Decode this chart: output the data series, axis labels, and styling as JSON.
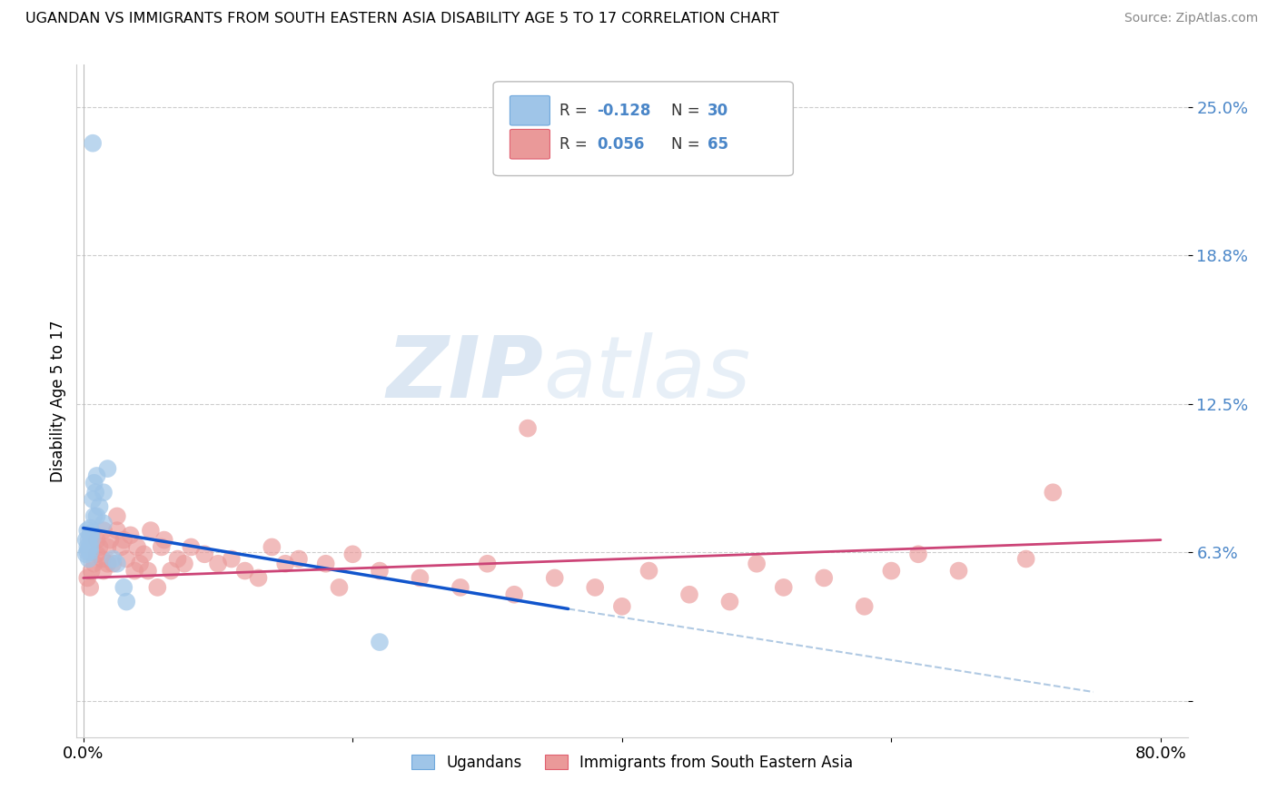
{
  "title": "UGANDAN VS IMMIGRANTS FROM SOUTH EASTERN ASIA DISABILITY AGE 5 TO 17 CORRELATION CHART",
  "source": "Source: ZipAtlas.com",
  "ylabel": "Disability Age 5 to 17",
  "ytick_vals": [
    0.0,
    0.063,
    0.125,
    0.188,
    0.25
  ],
  "ytick_labels": [
    "",
    "6.3%",
    "12.5%",
    "18.8%",
    "25.0%"
  ],
  "xtick_vals": [
    0.0,
    0.2,
    0.4,
    0.6,
    0.8
  ],
  "xtick_labels": [
    "0.0%",
    "",
    "",
    "",
    "80.0%"
  ],
  "xlim": [
    -0.005,
    0.82
  ],
  "ylim": [
    -0.015,
    0.268
  ],
  "color_blue": "#9fc5e8",
  "color_pink": "#ea9999",
  "color_blue_line": "#1155cc",
  "color_pink_line": "#cc4477",
  "color_dashed": "#a8c4e0",
  "blue_line_x": [
    0.0,
    0.36
  ],
  "blue_line_y": [
    0.073,
    0.039
  ],
  "pink_line_x": [
    0.0,
    0.8
  ],
  "pink_line_y": [
    0.052,
    0.068
  ],
  "dash_line_x": [
    0.36,
    0.75
  ],
  "dash_line_y": [
    0.039,
    0.004
  ],
  "ug_x": [
    0.002,
    0.002,
    0.003,
    0.003,
    0.003,
    0.004,
    0.004,
    0.004,
    0.005,
    0.005,
    0.005,
    0.005,
    0.006,
    0.006,
    0.007,
    0.008,
    0.008,
    0.009,
    0.01,
    0.01,
    0.012,
    0.015,
    0.015,
    0.018,
    0.022,
    0.025,
    0.03,
    0.032,
    0.22,
    0.007
  ],
  "ug_y": [
    0.062,
    0.068,
    0.063,
    0.065,
    0.072,
    0.06,
    0.064,
    0.068,
    0.063,
    0.065,
    0.07,
    0.073,
    0.068,
    0.071,
    0.085,
    0.078,
    0.092,
    0.088,
    0.078,
    0.095,
    0.082,
    0.075,
    0.088,
    0.098,
    0.06,
    0.058,
    0.048,
    0.042,
    0.025,
    0.235
  ],
  "sea_x": [
    0.003,
    0.005,
    0.006,
    0.008,
    0.01,
    0.01,
    0.012,
    0.014,
    0.015,
    0.015,
    0.018,
    0.018,
    0.02,
    0.022,
    0.025,
    0.025,
    0.028,
    0.03,
    0.032,
    0.035,
    0.038,
    0.04,
    0.042,
    0.045,
    0.048,
    0.05,
    0.055,
    0.058,
    0.06,
    0.065,
    0.07,
    0.075,
    0.08,
    0.09,
    0.1,
    0.11,
    0.12,
    0.13,
    0.14,
    0.15,
    0.16,
    0.18,
    0.19,
    0.2,
    0.22,
    0.25,
    0.28,
    0.3,
    0.32,
    0.35,
    0.38,
    0.4,
    0.42,
    0.45,
    0.48,
    0.5,
    0.52,
    0.55,
    0.58,
    0.6,
    0.33,
    0.62,
    0.65,
    0.7,
    0.72
  ],
  "sea_y": [
    0.052,
    0.048,
    0.055,
    0.058,
    0.062,
    0.068,
    0.065,
    0.06,
    0.072,
    0.055,
    0.058,
    0.065,
    0.068,
    0.058,
    0.072,
    0.078,
    0.065,
    0.068,
    0.06,
    0.07,
    0.055,
    0.065,
    0.058,
    0.062,
    0.055,
    0.072,
    0.048,
    0.065,
    0.068,
    0.055,
    0.06,
    0.058,
    0.065,
    0.062,
    0.058,
    0.06,
    0.055,
    0.052,
    0.065,
    0.058,
    0.06,
    0.058,
    0.048,
    0.062,
    0.055,
    0.052,
    0.048,
    0.058,
    0.045,
    0.052,
    0.048,
    0.04,
    0.055,
    0.045,
    0.042,
    0.058,
    0.048,
    0.052,
    0.04,
    0.055,
    0.115,
    0.062,
    0.055,
    0.06,
    0.088
  ]
}
